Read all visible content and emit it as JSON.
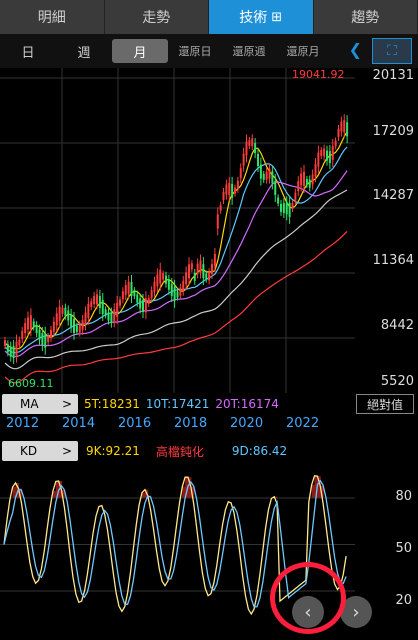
{
  "top_tabs": [
    {
      "label": "明細",
      "active": false
    },
    {
      "label": "走勢",
      "active": false
    },
    {
      "label": "技術",
      "active": true,
      "icon": "collapse-icon"
    },
    {
      "label": "趨勢",
      "active": false
    }
  ],
  "period_tabs": [
    {
      "label": "日",
      "active": false
    },
    {
      "label": "週",
      "active": false
    },
    {
      "label": "月",
      "active": true
    },
    {
      "label": "還原日",
      "active": false
    },
    {
      "label": "還原週",
      "active": false
    },
    {
      "label": "還原月",
      "active": false
    }
  ],
  "price_axis": [
    "20131",
    "17209",
    "14287",
    "11364",
    "8442",
    "5520"
  ],
  "last_price": "19041.92",
  "low_price": "6609.11",
  "ma": {
    "label": "MA",
    "values": [
      {
        "text": "5T:18231",
        "color": "#ffd700"
      },
      {
        "text": "10T:17421",
        "color": "#5ec8ff"
      },
      {
        "text": "20T:16174",
        "color": "#d36bff"
      }
    ],
    "abs_label": "絕對值"
  },
  "years": [
    "2012",
    "2014",
    "2016",
    "2018",
    "2020",
    "2022"
  ],
  "kd": {
    "label": "KD",
    "k": "9K:92.21",
    "status": "高檔鈍化",
    "d": "9D:86.42"
  },
  "kd_axis": [
    "80",
    "50",
    "20"
  ],
  "colors": {
    "accent": "#1e90d8",
    "up": "#ff3b3b",
    "down": "#2ee36a",
    "k_line": "#ffe98a",
    "d_line": "#6fc8ff",
    "highlight": "#ff1e3c"
  }
}
